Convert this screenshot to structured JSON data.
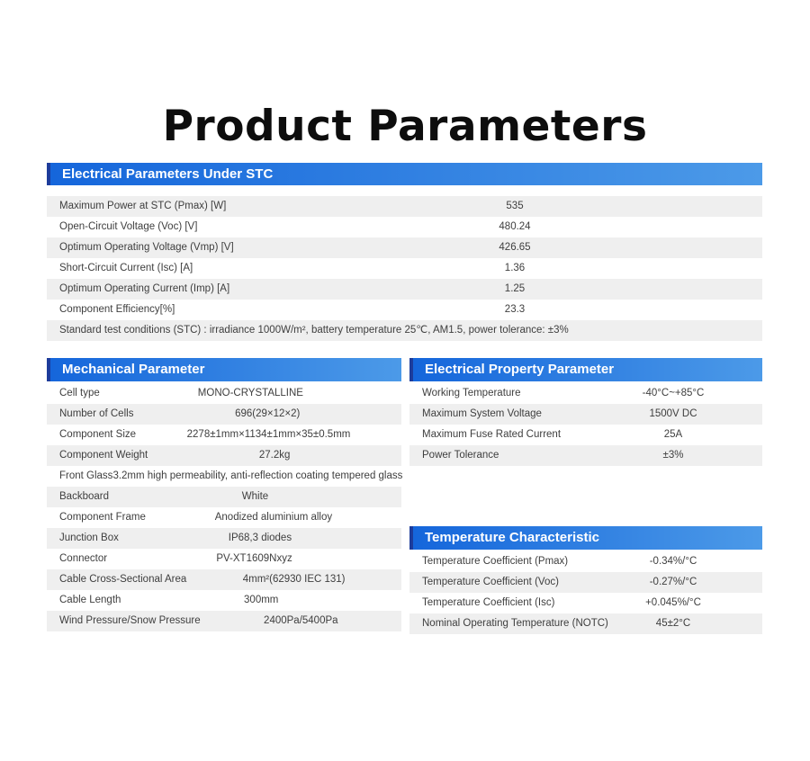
{
  "page": {
    "title": "Product Parameters"
  },
  "colors": {
    "header_gradient_start": "#1566db",
    "header_gradient_end": "#4c9ae8",
    "header_accent": "#1d3c9b",
    "row_stripe": "#efefef",
    "text": "#3e3e3e"
  },
  "sections": {
    "stc": {
      "header": "Electrical Parameters Under STC",
      "rows": [
        {
          "label": "Maximum Power at STC (Pmax) [W]",
          "value": "535"
        },
        {
          "label": "Open-Circuit Voltage (Voc) [V]",
          "value": "480.24"
        },
        {
          "label": "Optimum Operating Voltage (Vmp) [V]",
          "value": "426.65"
        },
        {
          "label": "Short-Circuit Current (Isc) [A]",
          "value": "1.36"
        },
        {
          "label": "Optimum Operating Current (Imp) [A]",
          "value": "1.25"
        },
        {
          "label": "Component Efficiency[%]",
          "value": "23.3"
        }
      ],
      "note": "Standard test conditions (STC) : irradiance 1000W/m², battery temperature 25℃, AM1.5, power tolerance: ±3%"
    },
    "mechanical": {
      "header": "Mechanical Parameter",
      "rows": [
        {
          "label": "Cell type",
          "value": "MONO-CRYSTALLINE"
        },
        {
          "label": "Number of Cells",
          "value": "696(29×12×2)"
        },
        {
          "label": "Component Size",
          "value": "2278±1mm×1134±1mm×35±0.5mm"
        },
        {
          "label": "Component Weight",
          "value": "27.2kg"
        },
        {
          "label": "Front Glass",
          "value": "3.2mm high permeability, anti-reflection coating tempered glass"
        },
        {
          "label": "Backboard",
          "value": "White"
        },
        {
          "label": "Component Frame",
          "value": "Anodized aluminium alloy"
        },
        {
          "label": "Junction Box",
          "value": "IP68,3 diodes"
        },
        {
          "label": "Connector",
          "value": "PV-XT1609Nxyz"
        },
        {
          "label": "Cable Cross-Sectional Area",
          "value": "4mm²(62930 IEC 131)"
        },
        {
          "label": "Cable Length",
          "value": "300mm"
        },
        {
          "label": "Wind Pressure/Snow Pressure",
          "value": "2400Pa/5400Pa"
        }
      ]
    },
    "electrical_property": {
      "header": "Electrical Property Parameter",
      "rows": [
        {
          "label": "Working Temperature",
          "value": "-40°C~+85°C"
        },
        {
          "label": "Maximum System Voltage",
          "value": "1500V DC"
        },
        {
          "label": "Maximum Fuse Rated Current",
          "value": "25A"
        },
        {
          "label": "Power Tolerance",
          "value": "±3%"
        }
      ]
    },
    "temperature": {
      "header": "Temperature Characteristic",
      "rows": [
        {
          "label": "Temperature Coefficient (Pmax)",
          "value": "-0.34%/°C"
        },
        {
          "label": "Temperature Coefficient (Voc)",
          "value": "-0.27%/°C"
        },
        {
          "label": "Temperature Coefficient (Isc)",
          "value": "+0.045%/°C"
        },
        {
          "label": "Nominal Operating Temperature (NOTC)",
          "value": "45±2°C"
        }
      ]
    }
  }
}
